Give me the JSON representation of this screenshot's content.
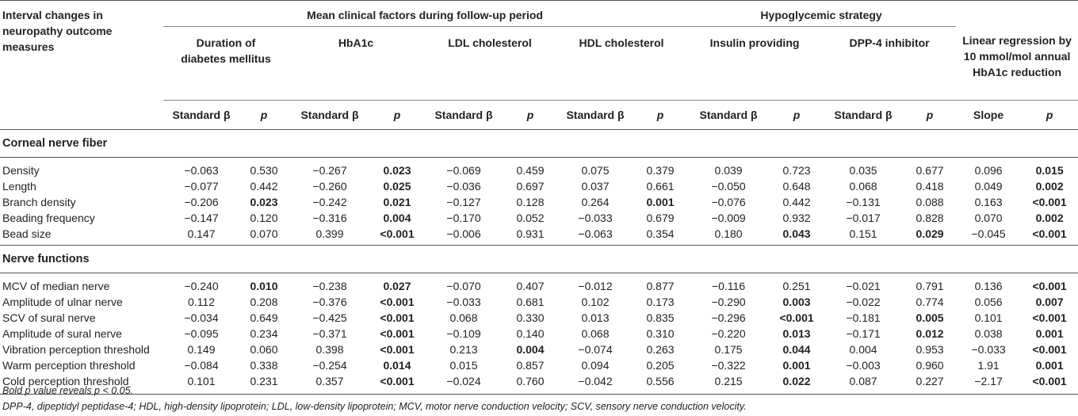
{
  "header": {
    "row_label": "Interval changes in neuropathy outcome measures",
    "group_mean": "Mean clinical factors during follow-up period",
    "group_hypo": "Hypoglycemic strategy",
    "col_duration": "Duration of diabetes mellitus",
    "col_hba1c": "HbA1c",
    "col_ldl": "LDL cholesterol",
    "col_hdl": "HDL cholesterol",
    "col_insulin": "Insulin providing",
    "col_dpp4": "DPP-4 inhibitor",
    "col_linear": "Linear regression by 10 mmol/mol annual HbA1c reduction",
    "sub_beta": "Standard β",
    "sub_p": "p",
    "sub_slope": "Slope"
  },
  "sections": [
    {
      "title": "Corneal nerve fiber",
      "rows": [
        {
          "label": "Density",
          "cells": [
            {
              "v": "−0.063"
            },
            {
              "v": "0.530"
            },
            {
              "v": "−0.267"
            },
            {
              "v": "0.023",
              "b": true
            },
            {
              "v": "−0.069"
            },
            {
              "v": "0.459"
            },
            {
              "v": "0.075"
            },
            {
              "v": "0.379"
            },
            {
              "v": "0.039"
            },
            {
              "v": "0.723"
            },
            {
              "v": "0.035"
            },
            {
              "v": "0.677"
            },
            {
              "v": "0.096"
            },
            {
              "v": "0.015",
              "b": true
            }
          ]
        },
        {
          "label": "Length",
          "cells": [
            {
              "v": "−0.077"
            },
            {
              "v": "0.442"
            },
            {
              "v": "−0.260"
            },
            {
              "v": "0.025",
              "b": true
            },
            {
              "v": "−0.036"
            },
            {
              "v": "0.697"
            },
            {
              "v": "0.037"
            },
            {
              "v": "0.661"
            },
            {
              "v": "−0.050"
            },
            {
              "v": "0.648"
            },
            {
              "v": "0.068"
            },
            {
              "v": "0.418"
            },
            {
              "v": "0.049"
            },
            {
              "v": "0.002",
              "b": true
            }
          ]
        },
        {
          "label": "Branch density",
          "cells": [
            {
              "v": "−0.206"
            },
            {
              "v": "0.023",
              "b": true
            },
            {
              "v": "−0.242"
            },
            {
              "v": "0.021",
              "b": true
            },
            {
              "v": "−0.127"
            },
            {
              "v": "0.128"
            },
            {
              "v": "0.264"
            },
            {
              "v": "0.001",
              "b": true
            },
            {
              "v": "−0.076"
            },
            {
              "v": "0.442"
            },
            {
              "v": "−0.131"
            },
            {
              "v": "0.088"
            },
            {
              "v": "0.163"
            },
            {
              "v": "<0.001",
              "b": true
            }
          ]
        },
        {
          "label": "Beading frequency",
          "cells": [
            {
              "v": "−0.147"
            },
            {
              "v": "0.120"
            },
            {
              "v": "−0.316"
            },
            {
              "v": "0.004",
              "b": true
            },
            {
              "v": "−0.170"
            },
            {
              "v": "0.052"
            },
            {
              "v": "−0.033"
            },
            {
              "v": "0.679"
            },
            {
              "v": "−0.009"
            },
            {
              "v": "0.932"
            },
            {
              "v": "−0.017"
            },
            {
              "v": "0.828"
            },
            {
              "v": "0.070"
            },
            {
              "v": "0.002",
              "b": true
            }
          ]
        },
        {
          "label": "Bead size",
          "cells": [
            {
              "v": "0.147"
            },
            {
              "v": "0.070"
            },
            {
              "v": "0.399"
            },
            {
              "v": "<0.001",
              "b": true
            },
            {
              "v": "−0.006"
            },
            {
              "v": "0.931"
            },
            {
              "v": "−0.063"
            },
            {
              "v": "0.354"
            },
            {
              "v": "0.180"
            },
            {
              "v": "0.043",
              "b": true
            },
            {
              "v": "0.151"
            },
            {
              "v": "0.029",
              "b": true
            },
            {
              "v": "−0.045"
            },
            {
              "v": "<0.001",
              "b": true
            }
          ]
        }
      ]
    },
    {
      "title": "Nerve functions",
      "rows": [
        {
          "label": "MCV of median nerve",
          "cells": [
            {
              "v": "−0.240"
            },
            {
              "v": "0.010",
              "b": true
            },
            {
              "v": "−0.238"
            },
            {
              "v": "0.027",
              "b": true
            },
            {
              "v": "−0.070"
            },
            {
              "v": "0.407"
            },
            {
              "v": "−0.012"
            },
            {
              "v": "0.877"
            },
            {
              "v": "−0.116"
            },
            {
              "v": "0.251"
            },
            {
              "v": "−0.021"
            },
            {
              "v": "0.791"
            },
            {
              "v": "0.136"
            },
            {
              "v": "<0.001",
              "b": true
            }
          ]
        },
        {
          "label": "Amplitude of ulnar nerve",
          "cells": [
            {
              "v": "0.112"
            },
            {
              "v": "0.208"
            },
            {
              "v": "−0.376"
            },
            {
              "v": "<0.001",
              "b": true
            },
            {
              "v": "−0.033"
            },
            {
              "v": "0.681"
            },
            {
              "v": "0.102"
            },
            {
              "v": "0.173"
            },
            {
              "v": "−0.290"
            },
            {
              "v": "0.003",
              "b": true
            },
            {
              "v": "−0.022"
            },
            {
              "v": "0.774"
            },
            {
              "v": "0.056"
            },
            {
              "v": "0.007",
              "b": true
            }
          ]
        },
        {
          "label": "SCV of sural nerve",
          "cells": [
            {
              "v": "−0.034"
            },
            {
              "v": "0.649"
            },
            {
              "v": "−0.425"
            },
            {
              "v": "<0.001",
              "b": true
            },
            {
              "v": "0.068"
            },
            {
              "v": "0.330"
            },
            {
              "v": "0.013"
            },
            {
              "v": "0.835"
            },
            {
              "v": "−0.296"
            },
            {
              "v": "<0.001",
              "b": true
            },
            {
              "v": "−0.181"
            },
            {
              "v": "0.005",
              "b": true
            },
            {
              "v": "0.101"
            },
            {
              "v": "<0.001",
              "b": true
            }
          ]
        },
        {
          "label": "Amplitude of sural nerve",
          "cells": [
            {
              "v": "−0.095"
            },
            {
              "v": "0.234"
            },
            {
              "v": "−0.371"
            },
            {
              "v": "<0.001",
              "b": true
            },
            {
              "v": "−0.109"
            },
            {
              "v": "0.140"
            },
            {
              "v": "0.068"
            },
            {
              "v": "0.310"
            },
            {
              "v": "−0.220"
            },
            {
              "v": "0.013",
              "b": true
            },
            {
              "v": "−0.171"
            },
            {
              "v": "0.012",
              "b": true
            },
            {
              "v": "0.038"
            },
            {
              "v": "0.001",
              "b": true
            }
          ]
        },
        {
          "label": "Vibration perception threshold",
          "cells": [
            {
              "v": "0.149"
            },
            {
              "v": "0.060"
            },
            {
              "v": "0.398"
            },
            {
              "v": "<0.001",
              "b": true
            },
            {
              "v": "0.213"
            },
            {
              "v": "0.004",
              "b": true
            },
            {
              "v": "−0.074"
            },
            {
              "v": "0.263"
            },
            {
              "v": "0.175"
            },
            {
              "v": "0.044",
              "b": true
            },
            {
              "v": "0.004"
            },
            {
              "v": "0.953"
            },
            {
              "v": "−0.033"
            },
            {
              "v": "<0.001",
              "b": true
            }
          ]
        },
        {
          "label": "Warm perception threshold",
          "cells": [
            {
              "v": "−0.084"
            },
            {
              "v": "0.338"
            },
            {
              "v": "−0.254"
            },
            {
              "v": "0.014",
              "b": true
            },
            {
              "v": "0.015"
            },
            {
              "v": "0.857"
            },
            {
              "v": "0.094"
            },
            {
              "v": "0.205"
            },
            {
              "v": "−0.322"
            },
            {
              "v": "0.001",
              "b": true
            },
            {
              "v": "−0.003"
            },
            {
              "v": "0.960"
            },
            {
              "v": "1.91"
            },
            {
              "v": "0.001",
              "b": true
            }
          ]
        },
        {
          "label": "Cold perception threshold",
          "cells": [
            {
              "v": "0.101"
            },
            {
              "v": "0.231"
            },
            {
              "v": "0.357"
            },
            {
              "v": "<0.001",
              "b": true
            },
            {
              "v": "−0.024"
            },
            {
              "v": "0.760"
            },
            {
              "v": "−0.042"
            },
            {
              "v": "0.556"
            },
            {
              "v": "0.215"
            },
            {
              "v": "0.022",
              "b": true
            },
            {
              "v": "0.087"
            },
            {
              "v": "0.227"
            },
            {
              "v": "−2.17"
            },
            {
              "v": "<0.001",
              "b": true
            }
          ]
        }
      ]
    }
  ],
  "footnotes": {
    "note1": "Bold p value reveals p < 0.05.",
    "note2": "DPP-4, dipeptidyl peptidase-4; HDL, high-density lipoprotein; LDL, low-density lipoprotein; MCV, motor nerve conduction velocity; SCV, sensory nerve conduction velocity."
  }
}
